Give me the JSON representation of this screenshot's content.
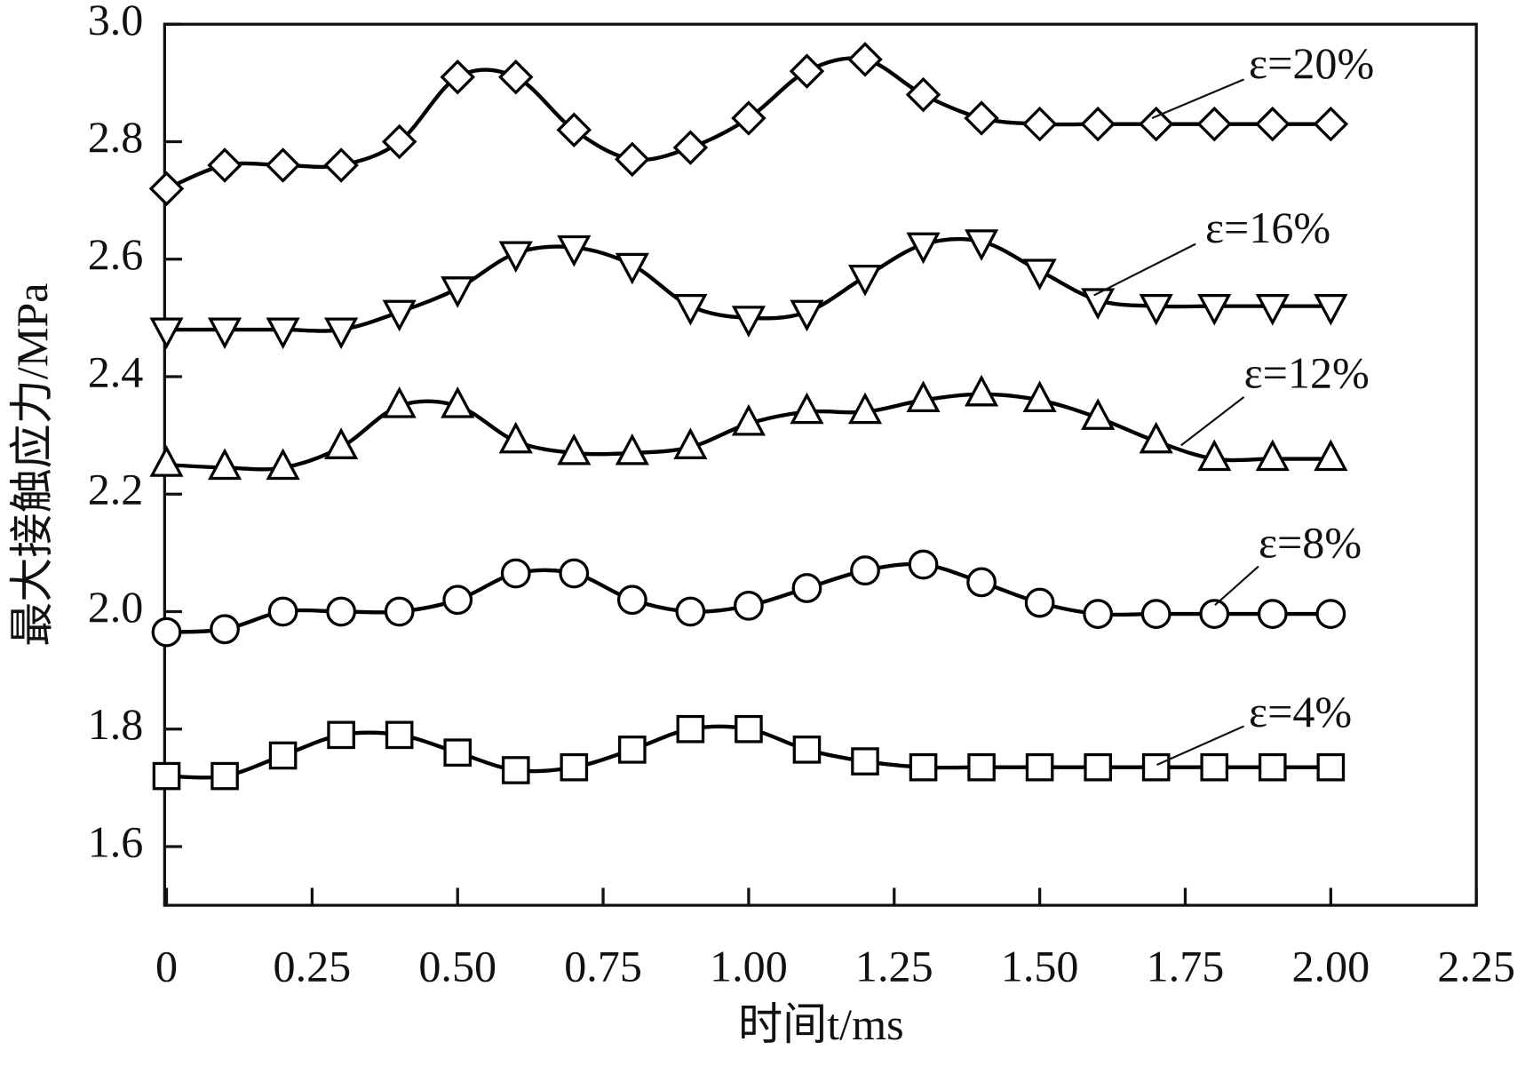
{
  "chart_data": {
    "type": "line",
    "x_label": "时间t/ms",
    "y_label": "最大接触应力/MPa",
    "x": [
      0,
      0.1,
      0.2,
      0.3,
      0.4,
      0.5,
      0.6,
      0.7,
      0.8,
      0.9,
      1.0,
      1.1,
      1.2,
      1.3,
      1.4,
      1.5,
      1.6,
      1.7,
      1.8,
      1.9,
      2.0
    ],
    "xlim": [
      0,
      2.25
    ],
    "xticks": [
      0,
      0.25,
      {
        "value": 0.5,
        "label": "0.50"
      },
      0.75,
      {
        "value": 1,
        "label": "1.00"
      },
      1.25,
      {
        "value": 1.5,
        "label": "1.50"
      },
      1.75,
      {
        "value": 2,
        "label": "2.00"
      },
      2.25
    ],
    "ylim": [
      1.5,
      3.0
    ],
    "yticks": [
      1.6,
      1.8,
      {
        "value": 2,
        "label": "2.0"
      },
      2.2,
      2.4,
      2.6,
      2.8,
      {
        "value": 3,
        "label": "3.0"
      }
    ],
    "grid": false,
    "series": [
      {
        "name": "ε=4%",
        "color": "#000000",
        "marker": "square",
        "values": [
          1.72,
          1.72,
          1.755,
          1.79,
          1.79,
          1.76,
          1.73,
          1.735,
          1.765,
          1.8,
          1.8,
          1.765,
          1.745,
          1.735,
          1.735,
          1.735,
          1.735,
          1.735,
          1.735,
          1.735,
          1.735
        ]
      },
      {
        "name": "ε=8%",
        "color": "#000000",
        "marker": "circle",
        "values": [
          1.965,
          1.97,
          2.0,
          2.0,
          2.0,
          2.02,
          2.065,
          2.065,
          2.02,
          2.0,
          2.01,
          2.04,
          2.07,
          2.08,
          2.05,
          2.015,
          1.996,
          1.996,
          1.996,
          1.996,
          1.996
        ]
      },
      {
        "name": "ε=12%",
        "color": "#000000",
        "marker": "triangle-up",
        "values": [
          2.25,
          2.245,
          2.245,
          2.28,
          2.35,
          2.35,
          2.29,
          2.27,
          2.27,
          2.28,
          2.32,
          2.34,
          2.34,
          2.36,
          2.37,
          2.36,
          2.33,
          2.29,
          2.26,
          2.26,
          2.26
        ]
      },
      {
        "name": "ε=16%",
        "color": "#000000",
        "marker": "triangle-down",
        "values": [
          2.48,
          2.48,
          2.48,
          2.48,
          2.51,
          2.55,
          2.61,
          2.62,
          2.59,
          2.52,
          2.5,
          2.51,
          2.57,
          2.625,
          2.63,
          2.58,
          2.53,
          2.52,
          2.52,
          2.52,
          2.52
        ]
      },
      {
        "name": "ε=20%",
        "color": "#000000",
        "marker": "diamond",
        "values": [
          2.72,
          2.76,
          2.76,
          2.76,
          2.8,
          2.91,
          2.91,
          2.82,
          2.77,
          2.79,
          2.84,
          2.92,
          2.94,
          2.88,
          2.84,
          2.83,
          2.83,
          2.83,
          2.83,
          2.83,
          2.83
        ]
      }
    ]
  }
}
